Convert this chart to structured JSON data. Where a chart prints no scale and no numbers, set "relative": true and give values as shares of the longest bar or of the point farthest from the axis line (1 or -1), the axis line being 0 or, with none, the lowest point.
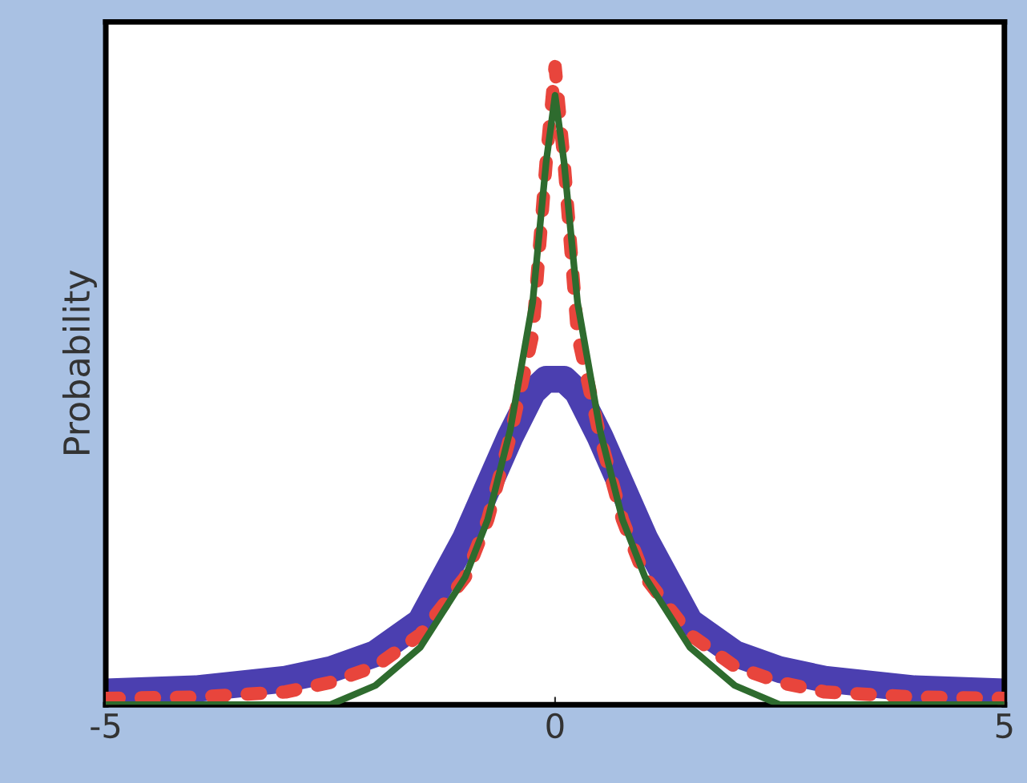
{
  "chart_data": {
    "type": "line",
    "ylabel": "Probability",
    "relative": true,
    "x": [
      -5,
      -4,
      -3,
      -2.5,
      -2,
      -1.5,
      -1,
      -0.75,
      -0.5,
      -0.25,
      -0.1,
      0,
      0.1,
      0.25,
      0.5,
      0.75,
      1,
      1.5,
      2,
      2.5,
      3,
      4,
      5
    ],
    "xlim": [
      -5,
      5
    ],
    "xticks": [
      -5,
      0,
      5
    ],
    "grid": false,
    "legend": false,
    "series": [
      {
        "color": "#4b3fb0",
        "line_style": "solid",
        "values": [
          0.02,
          0.025,
          0.04,
          0.055,
          0.08,
          0.13,
          0.26,
          0.34,
          0.42,
          0.49,
          0.51,
          0.51,
          0.51,
          0.49,
          0.42,
          0.34,
          0.26,
          0.13,
          0.08,
          0.055,
          0.04,
          0.025,
          0.02
        ]
      },
      {
        "color": "#e8453c",
        "line_style": "dotted",
        "values": [
          0.01,
          0.012,
          0.02,
          0.035,
          0.06,
          0.11,
          0.2,
          0.29,
          0.42,
          0.58,
          0.85,
          1,
          0.85,
          0.58,
          0.42,
          0.29,
          0.2,
          0.11,
          0.06,
          0.035,
          0.02,
          0.012,
          0.01
        ]
      },
      {
        "color": "#2e6b2e",
        "line_style": "solid",
        "values": [
          0,
          0,
          0,
          0,
          0.03,
          0.09,
          0.2,
          0.29,
          0.43,
          0.63,
          0.85,
          0.955,
          0.85,
          0.63,
          0.43,
          0.29,
          0.2,
          0.09,
          0.03,
          0,
          0,
          0,
          0
        ]
      }
    ]
  }
}
